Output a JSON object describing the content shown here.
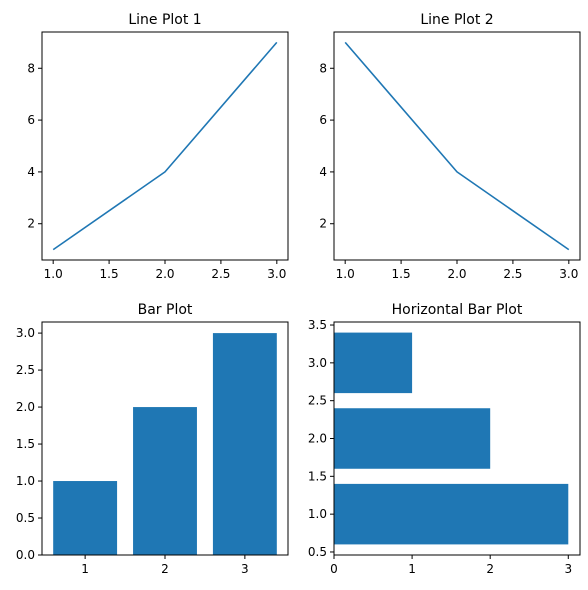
{
  "colors": {
    "series": "#1f77b4",
    "axis": "#000000",
    "background": "#ffffff"
  },
  "chart_data": [
    {
      "type": "line",
      "title": "Line Plot 1",
      "x": [
        1,
        2,
        3
      ],
      "y": [
        1,
        4,
        9
      ],
      "xlim": [
        0.9,
        3.1
      ],
      "ylim": [
        0.6,
        9.4
      ],
      "xticks": [
        "1.0",
        "1.5",
        "2.0",
        "2.5",
        "3.0"
      ],
      "yticks": [
        "2",
        "4",
        "6",
        "8"
      ],
      "grid": false
    },
    {
      "type": "line",
      "title": "Line Plot 2",
      "x": [
        1,
        2,
        3
      ],
      "y": [
        9,
        4,
        1
      ],
      "xlim": [
        0.9,
        3.1
      ],
      "ylim": [
        0.6,
        9.4
      ],
      "xticks": [
        "1.0",
        "1.5",
        "2.0",
        "2.5",
        "3.0"
      ],
      "yticks": [
        "2",
        "4",
        "6",
        "8"
      ],
      "grid": false
    },
    {
      "type": "bar",
      "orientation": "vertical",
      "title": "Bar Plot",
      "categories": [
        "1",
        "2",
        "3"
      ],
      "x": [
        1,
        2,
        3
      ],
      "values": [
        1,
        2,
        3
      ],
      "xlim": [
        0.46,
        3.54
      ],
      "ylim": [
        0,
        3.15
      ],
      "xticks": [
        "1",
        "2",
        "3"
      ],
      "yticks": [
        "0.0",
        "0.5",
        "1.0",
        "1.5",
        "2.0",
        "2.5",
        "3.0"
      ],
      "grid": false
    },
    {
      "type": "bar",
      "orientation": "horizontal",
      "title": "Horizontal Bar Plot",
      "categories": [
        "1",
        "2",
        "3"
      ],
      "y": [
        1,
        2,
        3
      ],
      "values": [
        3,
        2,
        1
      ],
      "xlim": [
        0,
        3.15
      ],
      "ylim": [
        0.46,
        3.54
      ],
      "xticks": [
        "0",
        "1",
        "2",
        "3"
      ],
      "yticks": [
        "0.5",
        "1.0",
        "1.5",
        "2.0",
        "2.5",
        "3.0",
        "3.5"
      ],
      "grid": false
    }
  ]
}
